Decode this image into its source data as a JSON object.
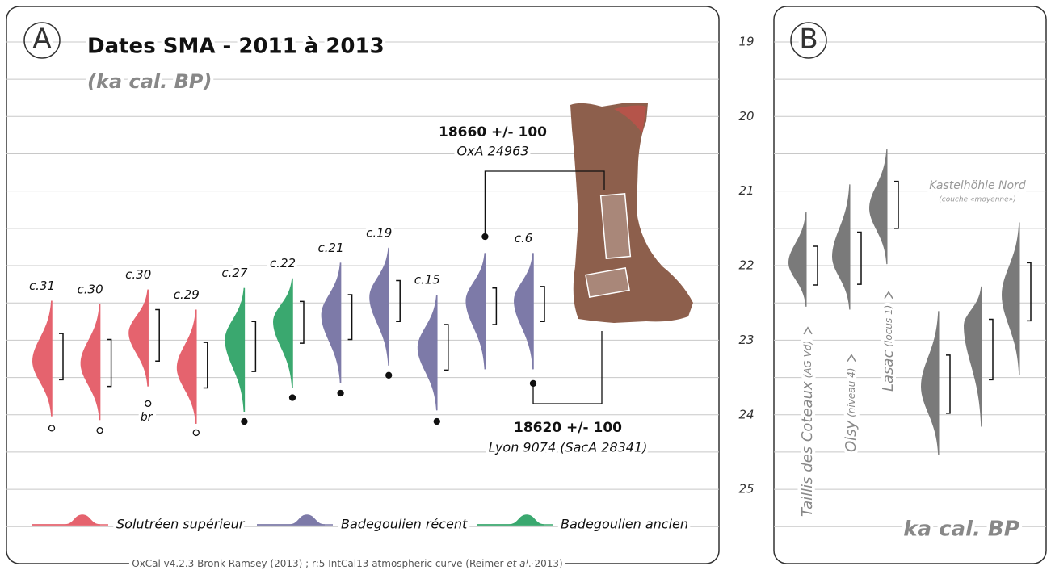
{
  "chart_data": {
    "type": "density",
    "panel_labels": [
      "A",
      "B"
    ],
    "title": "Dates SMA - 2011 à 2013",
    "subtitle": "(ka cal. BP)",
    "y_label": "ka cal. BP",
    "ylim": [
      18.6,
      25.8
    ],
    "yticks": [
      19,
      20,
      21,
      22,
      23,
      24,
      25
    ],
    "minor_yticks": [
      19.5,
      20.5,
      21.5,
      22.5,
      23.5,
      24.5,
      25.5
    ],
    "grid": true,
    "series": [
      {
        "name": "Solutréen supérieur",
        "color": "#e5636e"
      },
      {
        "name": "Badegoulien récent",
        "color": "#7d7aa8"
      },
      {
        "name": "Badegoulien ancien",
        "color": "#3aa86f"
      }
    ],
    "samples": [
      {
        "label": "c.31",
        "series": 0,
        "peak": 23.28,
        "start": 22.47,
        "end": 24.02,
        "range": [
          22.91,
          23.53
        ],
        "marker": 24.18,
        "marker_filled": false
      },
      {
        "label": "c.30",
        "series": 0,
        "peak": 23.31,
        "start": 22.52,
        "end": 24.07,
        "range": [
          22.99,
          23.62
        ],
        "marker": 24.21,
        "marker_filled": false
      },
      {
        "label": "c.30",
        "series": 0,
        "peak": 22.9,
        "start": 22.32,
        "end": 23.62,
        "range": [
          22.59,
          23.28
        ],
        "marker": 23.85,
        "marker_filled": false,
        "marker_label": "br"
      },
      {
        "label": "c.29",
        "series": 0,
        "peak": 23.37,
        "start": 22.59,
        "end": 24.12,
        "range": [
          23.03,
          23.64
        ],
        "marker": 24.24,
        "marker_filled": false
      },
      {
        "label": "c.27",
        "series": 2,
        "peak": 22.99,
        "start": 22.3,
        "end": 23.96,
        "range": [
          22.75,
          23.42
        ],
        "marker": 24.09,
        "marker_filled": true
      },
      {
        "label": "c.22",
        "series": 2,
        "peak": 22.75,
        "start": 22.17,
        "end": 23.64,
        "range": [
          22.48,
          23.04
        ],
        "marker": 23.77,
        "marker_filled": true
      },
      {
        "label": "c.21",
        "series": 1,
        "peak": 22.66,
        "start": 21.96,
        "end": 23.58,
        "range": [
          22.39,
          22.99
        ],
        "marker": 23.71,
        "marker_filled": true
      },
      {
        "label": "c.19",
        "series": 1,
        "peak": 22.42,
        "start": 21.76,
        "end": 23.34,
        "range": [
          22.2,
          22.75
        ],
        "marker": 23.47,
        "marker_filled": true
      },
      {
        "label": "c.15",
        "series": 1,
        "peak": 23.1,
        "start": 22.39,
        "end": 23.94,
        "range": [
          22.79,
          23.4
        ],
        "marker": 24.09,
        "marker_filled": true
      },
      {
        "label": null,
        "series": 1,
        "peak": 22.47,
        "start": 21.83,
        "end": 23.39,
        "range": [
          22.3,
          22.79
        ],
        "marker": 21.61,
        "marker_filled": true
      },
      {
        "label": "c.6",
        "series": 1,
        "peak": 22.47,
        "start": 21.83,
        "end": 23.39,
        "range": [
          22.28,
          22.75
        ],
        "marker": 23.58,
        "marker_filled": true
      }
    ],
    "site_color": "#7a7a7a",
    "sites": [
      {
        "label": "Taillis des Coteaux",
        "note": "(AG Vd)",
        "peak": 21.96,
        "start": 21.28,
        "end": 22.55,
        "range": [
          21.74,
          22.26
        ]
      },
      {
        "label": "Oisy",
        "note": "(niveau 4)",
        "peak": 21.88,
        "start": 20.91,
        "end": 22.59,
        "range": [
          21.55,
          22.25
        ]
      },
      {
        "label": "Lasac",
        "note": "(locus 1)",
        "peak": 21.23,
        "start": 20.44,
        "end": 21.98,
        "range": [
          20.87,
          21.5
        ]
      },
      {
        "label": null,
        "note": null,
        "peak": 23.62,
        "start": 22.61,
        "end": 24.54,
        "range": [
          23.2,
          23.98
        ]
      },
      {
        "label": null,
        "note": null,
        "peak": 22.8,
        "start": 22.28,
        "end": 24.16,
        "range": [
          22.72,
          23.53
        ]
      },
      {
        "label": null,
        "note": null,
        "peak": 22.39,
        "start": 21.42,
        "end": 23.47,
        "range": [
          21.96,
          22.74
        ]
      }
    ],
    "annotations": [
      "18660 +/- 100",
      "OxA 24963",
      "18620 +/- 100",
      "Lyon 9074 (SacA 28341)",
      "Kastelhöhle Nord",
      "(couche «moyenne»)"
    ],
    "footer": [
      "OxCal v4.2.3 Bronk Ramsey (2013) ; r:5 IntCal13 atmospheric curve (Reimer ",
      "et al",
      ". 2013)"
    ]
  }
}
